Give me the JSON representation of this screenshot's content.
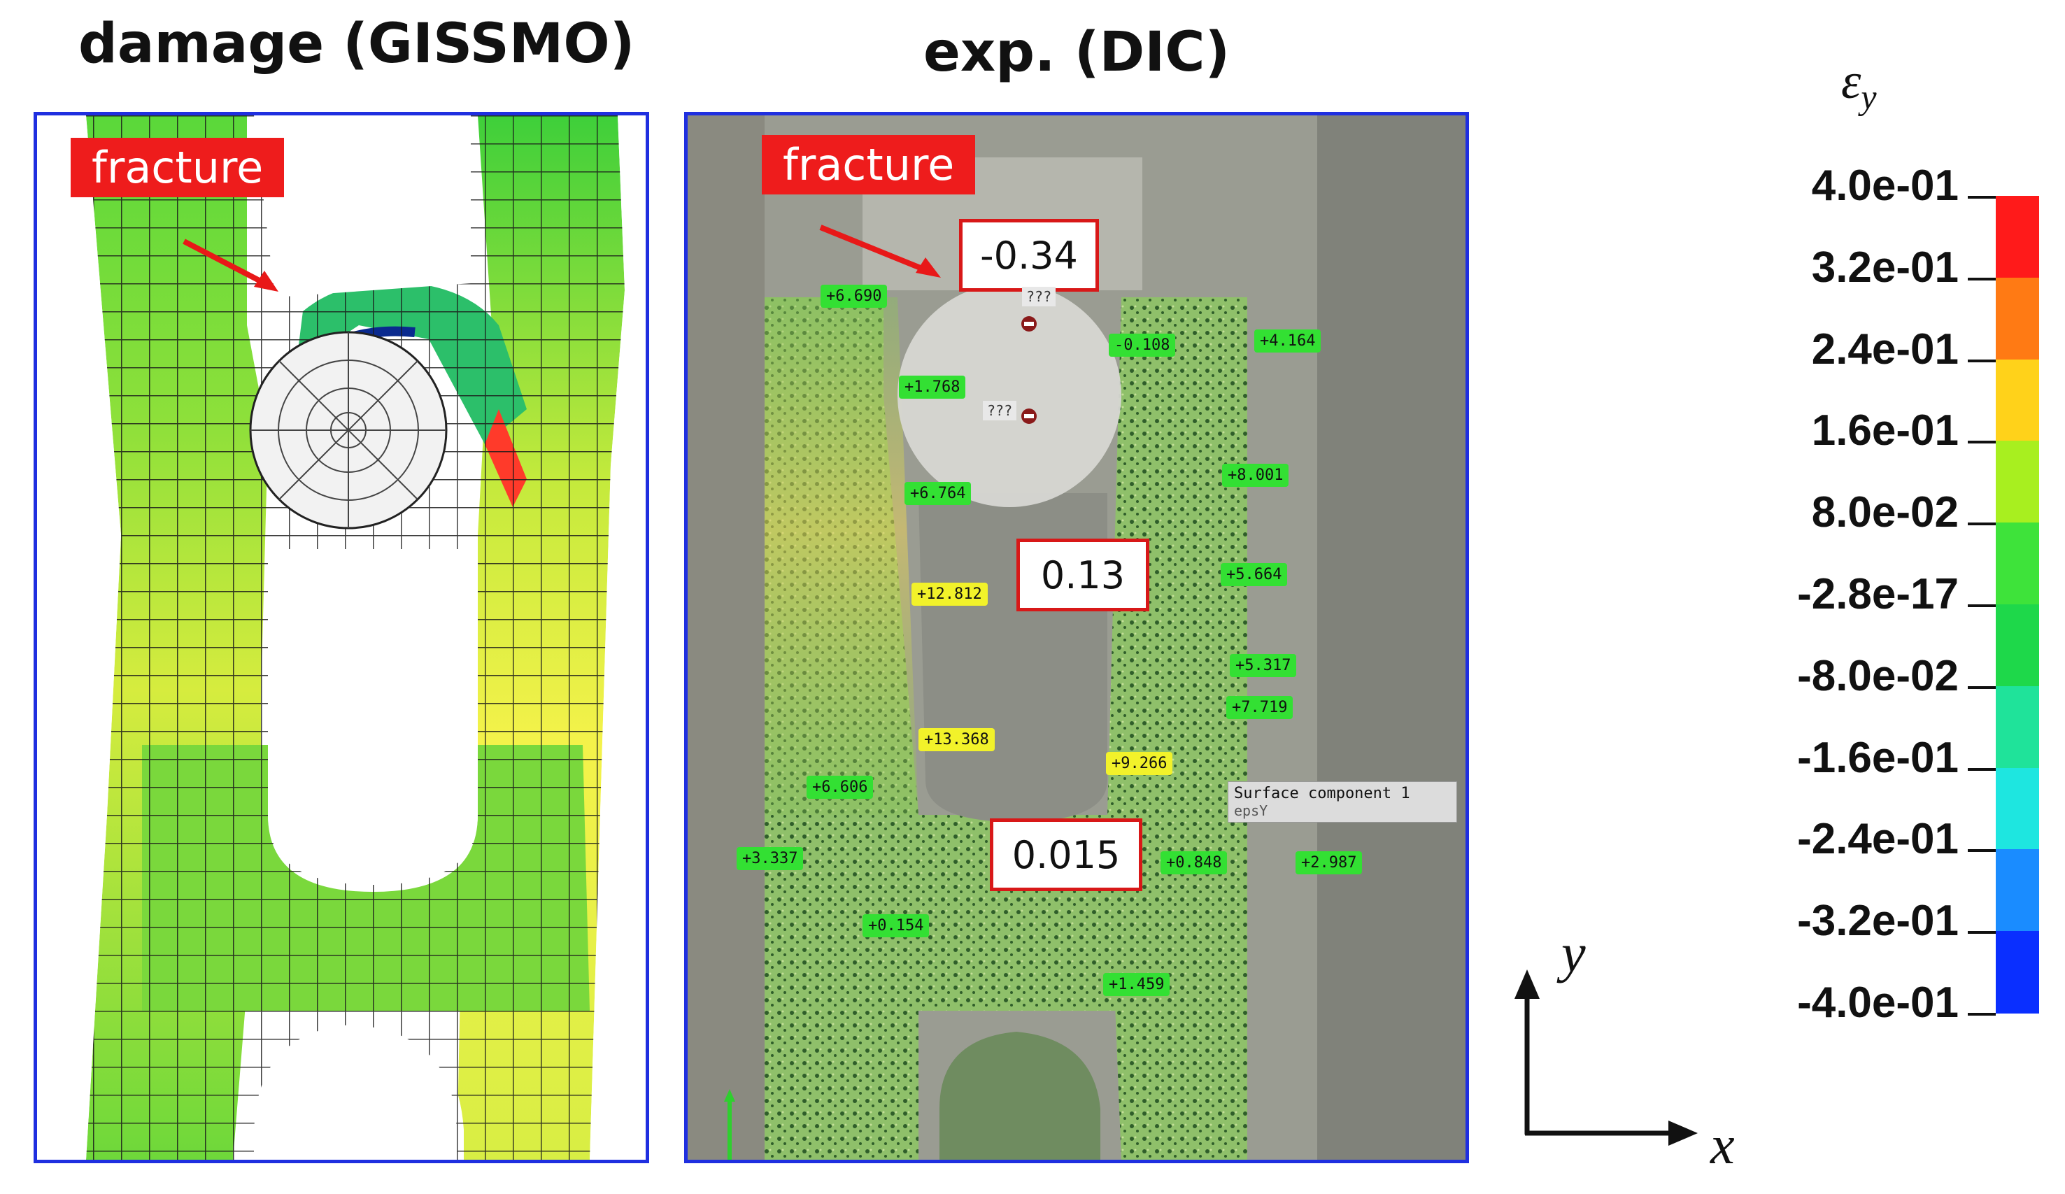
{
  "left_panel": {
    "title": "damage (GISSMO)",
    "fracture_label": "fracture"
  },
  "right_panel": {
    "title": "exp. (DIC)",
    "fracture_label": "fracture",
    "values": [
      "-0.34",
      "0.13",
      "0.015"
    ],
    "unknown_marks": [
      "???",
      "???"
    ],
    "surface_component": {
      "name": "Surface component 1",
      "field": "epsY"
    },
    "points": [
      {
        "label": "+6.690",
        "color": "green"
      },
      {
        "label": "-0.108",
        "color": "green"
      },
      {
        "label": "+4.164",
        "color": "green"
      },
      {
        "label": "+1.768",
        "color": "green"
      },
      {
        "label": "+8.001",
        "color": "green"
      },
      {
        "label": "+6.764",
        "color": "green"
      },
      {
        "label": "+5.664",
        "color": "green"
      },
      {
        "label": "+12.812",
        "color": "yellow"
      },
      {
        "label": "+5.317",
        "color": "green"
      },
      {
        "label": "+7.719",
        "color": "green"
      },
      {
        "label": "+13.368",
        "color": "yellow"
      },
      {
        "label": "+9.266",
        "color": "yellow"
      },
      {
        "label": "+6.606",
        "color": "green"
      },
      {
        "label": "+3.337",
        "color": "green"
      },
      {
        "label": "+0.848",
        "color": "green"
      },
      {
        "label": "+2.987",
        "color": "green"
      },
      {
        "label": "+0.154",
        "color": "green"
      },
      {
        "label": "+1.459",
        "color": "green"
      }
    ]
  },
  "legend": {
    "symbol": "ε",
    "subscript": "y",
    "ticks": [
      "4.0e-01",
      "3.2e-01",
      "2.4e-01",
      "1.6e-01",
      "8.0e-02",
      "-2.8e-17",
      "-8.0e-02",
      "-1.6e-01",
      "-2.4e-01",
      "-3.2e-01",
      "-4.0e-01"
    ],
    "colors": [
      "#ff1a1a",
      "#ff7a14",
      "#ffd21a",
      "#a8ef1f",
      "#3ee33a",
      "#1ed84a",
      "#1fe39a",
      "#1ee6e0",
      "#1a8cff",
      "#0a2fff"
    ]
  },
  "axes": {
    "y_label": "y",
    "x_label": "x"
  }
}
